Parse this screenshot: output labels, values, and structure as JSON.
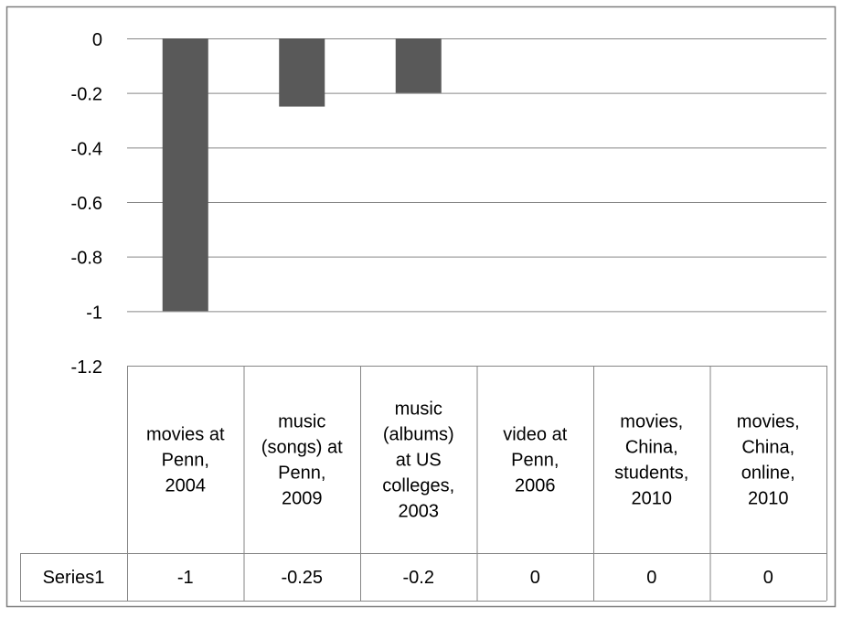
{
  "chart_data": {
    "type": "bar",
    "categories": [
      "movies at Penn, 2004",
      "music (songs) at Penn, 2009",
      "music (albums) at US colleges, 2003",
      "video at Penn, 2006",
      "movies, China, students, 2010",
      "movies, China, online, 2010"
    ],
    "category_lines": [
      [
        "movies at",
        "Penn,",
        "2004"
      ],
      [
        "music",
        "(songs) at",
        "Penn,",
        "2009"
      ],
      [
        "music",
        "(albums)",
        "at US",
        "colleges,",
        "2003"
      ],
      [
        "video at",
        "Penn,",
        "2006"
      ],
      [
        "movies,",
        "China,",
        "students,",
        "2010"
      ],
      [
        "movies,",
        "China,",
        "online,",
        "2010"
      ]
    ],
    "series": [
      {
        "name": "Series1",
        "values": [
          -1,
          -0.25,
          -0.2,
          0,
          0,
          0
        ]
      }
    ],
    "data_table": {
      "row_label": "Series1",
      "cells": [
        "-1",
        "-0.25",
        "-0.2",
        "0",
        "0",
        "0"
      ]
    },
    "yticks": [
      "0",
      "-0.2",
      "-0.4",
      "-0.6",
      "-0.8",
      "-1",
      "-1.2"
    ],
    "ylim": [
      -1.2,
      0
    ],
    "title": "",
    "xlabel": "",
    "ylabel": "",
    "grid": true,
    "legend": "none (data table below chart)",
    "colors": {
      "bar": "#595959",
      "gridline": "#868686",
      "table_border": "#868686",
      "frame": "#7f7f7f",
      "background": "#ffffff"
    }
  }
}
